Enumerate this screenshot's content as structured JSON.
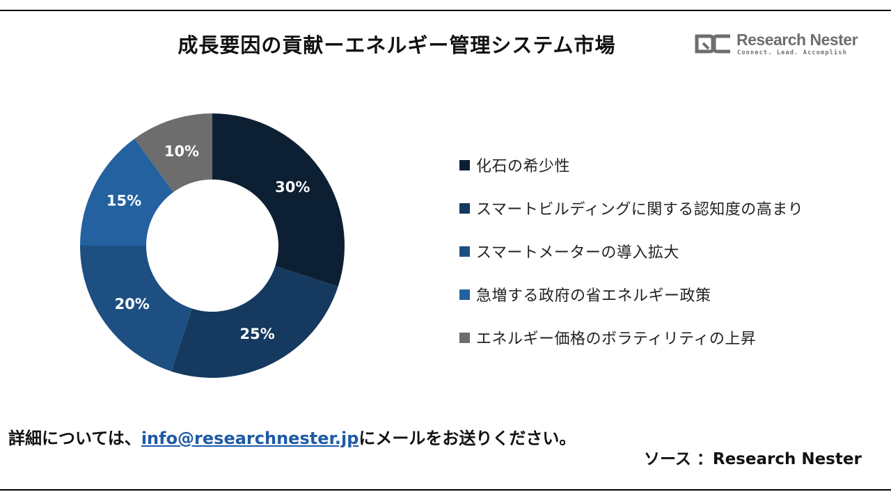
{
  "title": "成長要因の貢献ーエネルギー管理システム市場",
  "logo": {
    "name": "Research Nester",
    "tagline": "Connect. Lead. Accomplish",
    "colors": {
      "mark": "#6d6e71"
    }
  },
  "chart_data": {
    "type": "pie",
    "style": "donut",
    "categories": [
      "化石の希少性",
      "スマートビルディングに関する認知度の高まり",
      "スマートメーターの導入拡大",
      "急増する政府の省エネルギー政策",
      "エネルギー価格のボラティリティの上昇"
    ],
    "values": [
      30,
      25,
      20,
      15,
      10
    ],
    "value_labels": [
      "30%",
      "25%",
      "20%",
      "15%",
      "10%"
    ],
    "colors": [
      "#0d1f33",
      "#15395f",
      "#1d4f82",
      "#2461a0",
      "#6d6d6d"
    ],
    "legend_position": "right"
  },
  "footer": {
    "prefix": "詳細については、",
    "email": "info@researchnester.jp",
    "suffix": "にメールをお送りください。"
  },
  "source": "ソース ：Research Nester"
}
